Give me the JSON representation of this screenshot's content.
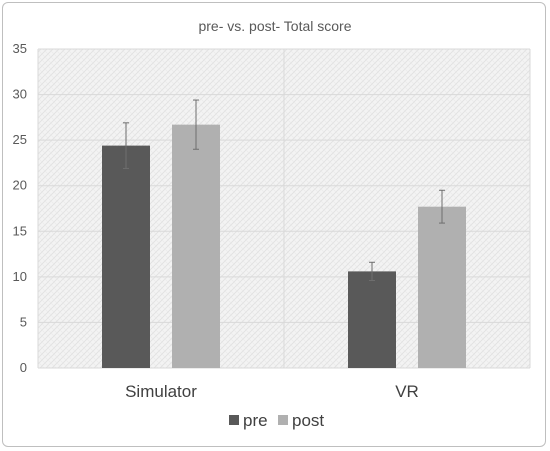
{
  "chart_data": {
    "type": "bar",
    "title": "pre- vs. post-  Total score",
    "xlabel": "",
    "ylabel": "",
    "categories": [
      "Simulator",
      "VR"
    ],
    "series": [
      {
        "name": "pre",
        "values": [
          24.4,
          10.6
        ],
        "error": [
          2.5,
          1.0
        ],
        "color": "#595959"
      },
      {
        "name": "post",
        "values": [
          26.7,
          17.7
        ],
        "error": [
          2.7,
          1.8
        ],
        "color": "#b0b0b0"
      }
    ],
    "ylim": [
      0,
      35
    ],
    "yticks": [
      "0",
      "5",
      "10",
      "15",
      "20",
      "25",
      "30",
      "35"
    ],
    "grid": true,
    "legend_position": "bottom",
    "error_bar_color": "#6e6e6e",
    "plot_background": "patterned light gray"
  }
}
